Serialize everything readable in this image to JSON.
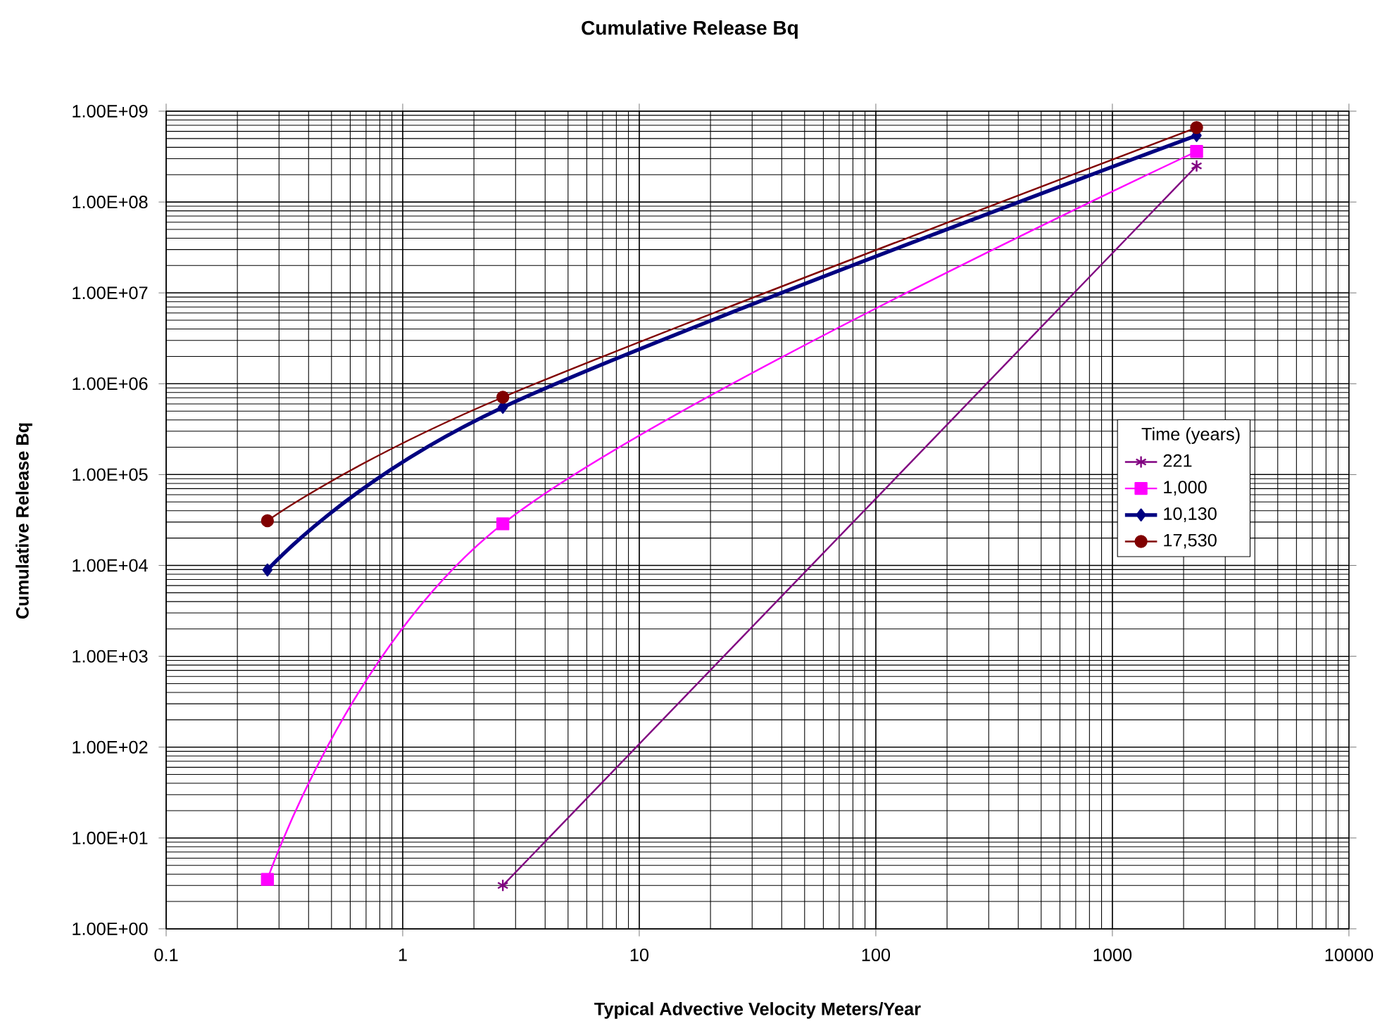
{
  "chart_data": {
    "type": "line",
    "title": "Cumulative Release Bq",
    "xlabel": "Typical Advective Velocity  Meters/Year",
    "ylabel": "Cumulative Release Bq",
    "legend_title": "Time (years)",
    "log": "xy",
    "grid": true,
    "legend": "right",
    "x": [
      0.268,
      2.65,
      2270
    ],
    "xlim": [
      0.1,
      10000
    ],
    "xticks": [
      0.1,
      1,
      10,
      100,
      1000,
      10000
    ],
    "ylim": [
      1,
      1000000000
    ],
    "yticks": [
      {
        "value": 1,
        "label": "1.00E+00"
      },
      {
        "value": 10,
        "label": "1.00E+01"
      },
      {
        "value": 100,
        "label": "1.00E+02"
      },
      {
        "value": 1000,
        "label": "1.00E+03"
      },
      {
        "value": 10000,
        "label": "1.00E+04"
      },
      {
        "value": 100000,
        "label": "1.00E+05"
      },
      {
        "value": 1000000,
        "label": "1.00E+06"
      },
      {
        "value": 10000000,
        "label": "1.00E+07"
      },
      {
        "value": 100000000,
        "label": "1.00E+08"
      },
      {
        "value": 1000000000,
        "label": "1.00E+09"
      }
    ],
    "series": [
      {
        "name": "221",
        "color": "#800080",
        "marker": "cross",
        "values": [
          null,
          3.0,
          250000000
        ]
      },
      {
        "name": "1,000",
        "color": "#ff00ff",
        "marker": "square",
        "values": [
          3.5,
          28700,
          360000000
        ]
      },
      {
        "name": "10,130",
        "color": "#000080",
        "marker": "diamond",
        "values": [
          8900,
          550000,
          540000000
        ]
      },
      {
        "name": "17,530",
        "color": "#800000",
        "marker": "circle",
        "values": [
          31000,
          710000,
          660000000
        ]
      }
    ]
  }
}
